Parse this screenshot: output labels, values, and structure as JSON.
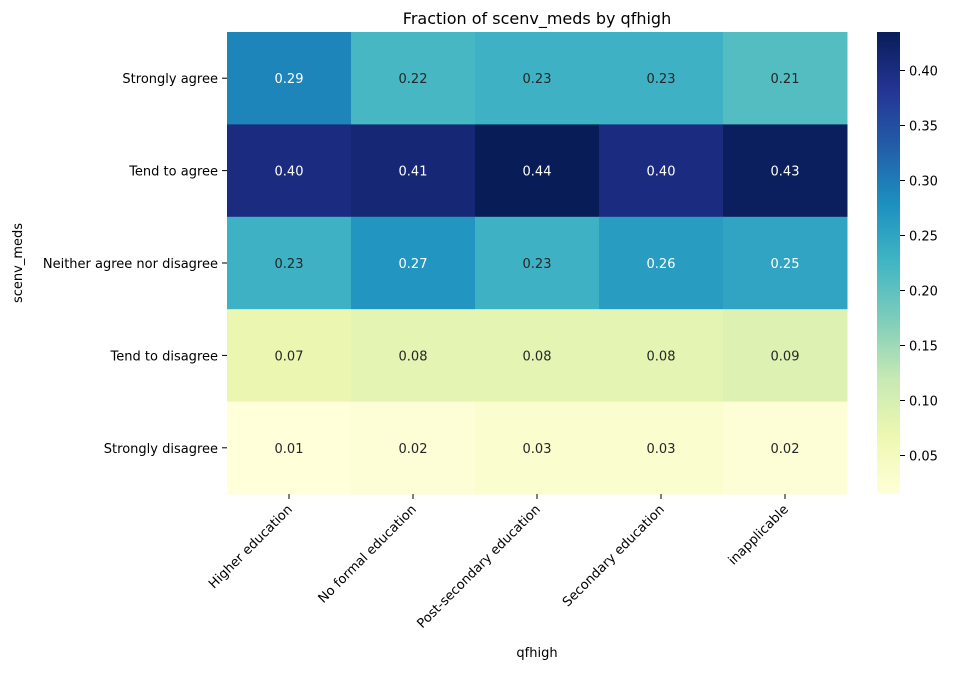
{
  "chart_data": {
    "type": "heatmap",
    "title": "Fraction of scenv_meds by qfhigh",
    "xlabel": "qfhigh",
    "ylabel": "scenv_meds",
    "x_categories": [
      "Higher education",
      "No formal education",
      "Post-secondary education",
      "Secondary education",
      "inapplicable"
    ],
    "y_categories": [
      "Strongly agree",
      "Tend to agree",
      "Neither agree nor disagree",
      "Tend to disagree",
      "Strongly disagree"
    ],
    "values": [
      [
        0.29,
        0.22,
        0.23,
        0.23,
        0.21
      ],
      [
        0.4,
        0.41,
        0.44,
        0.4,
        0.43
      ],
      [
        0.23,
        0.27,
        0.23,
        0.26,
        0.25
      ],
      [
        0.07,
        0.08,
        0.08,
        0.08,
        0.09
      ],
      [
        0.01,
        0.02,
        0.03,
        0.03,
        0.02
      ]
    ],
    "colormap": "YlGnBu",
    "colorbar": {
      "min": 0.015,
      "max": 0.435,
      "ticks": [
        0.05,
        0.1,
        0.15,
        0.2,
        0.25,
        0.3,
        0.35,
        0.4
      ],
      "tick_labels": [
        "0.05",
        "0.10",
        "0.15",
        "0.20",
        "0.25",
        "0.30",
        "0.35",
        "0.40"
      ]
    },
    "annotations": true,
    "grid": false,
    "legend": "colorbar-right"
  },
  "colors": {
    "ylgnbu": [
      "#ffffd9",
      "#edf8b1",
      "#c7e9b4",
      "#7fcdbb",
      "#41b6c4",
      "#1d91c0",
      "#225ea8",
      "#253494",
      "#081d58"
    ],
    "text_dark": "#262626",
    "text_light": "#ffffff"
  }
}
